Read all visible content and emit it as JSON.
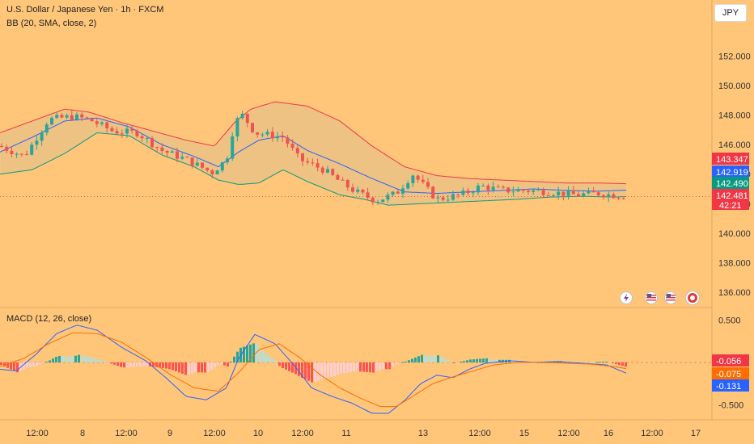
{
  "chart": {
    "title": "U.S. Dollar / Japanese Yen · 1h · FXCM",
    "indicator_label": "BB (20, SMA, close, 2)",
    "macd_label": "MACD (12, 26, close)",
    "currency": "JPY"
  },
  "colors": {
    "background": "#ffc67a",
    "up": "#26a69a",
    "down": "#ef5350",
    "upper_band": "#f23645",
    "basis": "#2962ff",
    "lower_band": "#089981",
    "macd_line": "#2962ff",
    "signal_line": "#ff6d00",
    "hist_up_strong": "#26a69a",
    "hist_up_weak": "#b2dfdb",
    "hist_down_strong": "#ff5252",
    "hist_down_weak": "#ffcdd2"
  },
  "price_axis": {
    "range": [
      135.3,
      153.6
    ],
    "ticks": [
      "152.000",
      "150.000",
      "148.000",
      "146.000",
      "144.000",
      "142.000",
      "140.000",
      "138.000",
      "136.000"
    ]
  },
  "macd_axis": {
    "range": [
      -0.6,
      0.58
    ],
    "ticks": [
      "0.500",
      "0.000",
      "-0.500"
    ]
  },
  "price_labels": [
    {
      "text": "143.347",
      "value": 143.347,
      "color": "#f23645"
    },
    {
      "text": "142.919",
      "value": 142.919,
      "color": "#2962ff"
    },
    {
      "text": "142.490",
      "value": 142.49,
      "color": "#089981"
    },
    {
      "text": "142.481",
      "value": 142.481,
      "color": "#f23645",
      "sub": "42:21"
    }
  ],
  "macd_labels": [
    {
      "text": "-0.056",
      "value": -0.056,
      "color": "#f23645"
    },
    {
      "text": "-0.075",
      "value": -0.075,
      "color": "#ff6d00"
    },
    {
      "text": "-0.131",
      "value": -0.131,
      "color": "#2962ff"
    }
  ],
  "time_axis": [
    "12:00",
    "8",
    "12:00",
    "9",
    "12:00",
    "10",
    "12:00",
    "11",
    "13",
    "12:00",
    "15",
    "12:00",
    "16",
    "12:00",
    "17"
  ],
  "events": [
    "lightning-icon",
    "us-flag-icon",
    "us-flag-icon",
    "record-icon"
  ],
  "chart_data": {
    "type": "candlestick",
    "price_keys": [
      [
        0,
        145.9
      ],
      [
        30,
        145.2
      ],
      [
        60,
        147.7
      ],
      [
        90,
        147.9
      ],
      [
        110,
        147.7
      ],
      [
        140,
        146.9
      ],
      [
        170,
        146.8
      ],
      [
        200,
        145.6
      ],
      [
        230,
        145.0
      ],
      [
        262,
        144.1
      ],
      [
        280,
        145.0
      ],
      [
        290,
        147.5
      ],
      [
        300,
        148.0
      ],
      [
        315,
        146.8
      ],
      [
        350,
        146.5
      ],
      [
        370,
        145.0
      ],
      [
        400,
        144.3
      ],
      [
        420,
        143.5
      ],
      [
        440,
        142.8
      ],
      [
        465,
        142.2
      ],
      [
        490,
        142.7
      ],
      [
        510,
        144.0
      ],
      [
        540,
        142.3
      ],
      [
        570,
        142.6
      ],
      [
        595,
        143.2
      ],
      [
        620,
        142.9
      ],
      [
        650,
        142.9
      ],
      [
        680,
        142.8
      ],
      [
        710,
        142.6
      ],
      [
        740,
        142.7
      ],
      [
        775,
        142.48
      ]
    ],
    "upper_band_keys": [
      [
        0,
        146.8
      ],
      [
        40,
        147.6
      ],
      [
        80,
        148.4
      ],
      [
        110,
        148.2
      ],
      [
        150,
        147.5
      ],
      [
        190,
        146.9
      ],
      [
        230,
        146.3
      ],
      [
        265,
        145.9
      ],
      [
        290,
        147.5
      ],
      [
        310,
        148.4
      ],
      [
        340,
        148.9
      ],
      [
        380,
        148.6
      ],
      [
        420,
        147.6
      ],
      [
        460,
        145.9
      ],
      [
        500,
        144.5
      ],
      [
        540,
        143.9
      ],
      [
        580,
        143.7
      ],
      [
        620,
        143.6
      ],
      [
        660,
        143.5
      ],
      [
        700,
        143.4
      ],
      [
        740,
        143.4
      ],
      [
        775,
        143.35
      ]
    ],
    "basis_keys": [
      [
        0,
        145.5
      ],
      [
        40,
        146.5
      ],
      [
        80,
        147.6
      ],
      [
        120,
        147.8
      ],
      [
        160,
        147.2
      ],
      [
        200,
        146.0
      ],
      [
        240,
        145.2
      ],
      [
        270,
        144.5
      ],
      [
        295,
        145.5
      ],
      [
        320,
        146.3
      ],
      [
        350,
        146.6
      ],
      [
        380,
        145.6
      ],
      [
        420,
        144.7
      ],
      [
        460,
        143.7
      ],
      [
        500,
        142.8
      ],
      [
        540,
        142.7
      ],
      [
        580,
        142.8
      ],
      [
        620,
        142.9
      ],
      [
        660,
        143.0
      ],
      [
        700,
        142.9
      ],
      [
        740,
        142.85
      ],
      [
        775,
        142.92
      ]
    ],
    "lower_band_keys": [
      [
        0,
        144.0
      ],
      [
        40,
        144.3
      ],
      [
        80,
        145.4
      ],
      [
        120,
        146.8
      ],
      [
        160,
        146.6
      ],
      [
        200,
        145.3
      ],
      [
        240,
        144.5
      ],
      [
        270,
        143.6
      ],
      [
        295,
        143.3
      ],
      [
        320,
        143.4
      ],
      [
        350,
        144.3
      ],
      [
        380,
        143.5
      ],
      [
        420,
        142.6
      ],
      [
        450,
        142.3
      ],
      [
        480,
        141.9
      ],
      [
        520,
        142.0
      ],
      [
        560,
        142.1
      ],
      [
        600,
        142.2
      ],
      [
        640,
        142.3
      ],
      [
        680,
        142.45
      ],
      [
        720,
        142.5
      ],
      [
        760,
        142.45
      ],
      [
        775,
        142.49
      ]
    ],
    "macd_keys": [
      [
        0,
        -0.08
      ],
      [
        20,
        -0.1
      ],
      [
        45,
        0.1
      ],
      [
        70,
        0.34
      ],
      [
        95,
        0.44
      ],
      [
        120,
        0.38
      ],
      [
        150,
        0.18
      ],
      [
        180,
        0.02
      ],
      [
        205,
        -0.18
      ],
      [
        230,
        -0.4
      ],
      [
        255,
        -0.44
      ],
      [
        280,
        -0.3
      ],
      [
        295,
        0.05
      ],
      [
        315,
        0.33
      ],
      [
        340,
        0.22
      ],
      [
        365,
        -0.05
      ],
      [
        385,
        -0.3
      ],
      [
        410,
        -0.4
      ],
      [
        435,
        -0.48
      ],
      [
        460,
        -0.6
      ],
      [
        480,
        -0.6
      ],
      [
        500,
        -0.45
      ],
      [
        520,
        -0.25
      ],
      [
        540,
        -0.15
      ],
      [
        560,
        -0.18
      ],
      [
        580,
        -0.08
      ],
      [
        600,
        -0.01
      ],
      [
        630,
        0.02
      ],
      [
        660,
        0.0
      ],
      [
        690,
        0.01
      ],
      [
        720,
        -0.01
      ],
      [
        750,
        -0.03
      ],
      [
        775,
        -0.131
      ]
    ],
    "signal_keys": [
      [
        0,
        -0.05
      ],
      [
        30,
        0.05
      ],
      [
        60,
        0.22
      ],
      [
        90,
        0.35
      ],
      [
        120,
        0.34
      ],
      [
        150,
        0.24
      ],
      [
        180,
        0.06
      ],
      [
        210,
        -0.14
      ],
      [
        240,
        -0.3
      ],
      [
        270,
        -0.34
      ],
      [
        295,
        -0.12
      ],
      [
        320,
        0.15
      ],
      [
        345,
        0.22
      ],
      [
        370,
        0.06
      ],
      [
        395,
        -0.14
      ],
      [
        420,
        -0.3
      ],
      [
        445,
        -0.42
      ],
      [
        470,
        -0.52
      ],
      [
        490,
        -0.52
      ],
      [
        510,
        -0.4
      ],
      [
        535,
        -0.25
      ],
      [
        560,
        -0.17
      ],
      [
        585,
        -0.1
      ],
      [
        610,
        -0.03
      ],
      [
        640,
        0.0
      ],
      [
        670,
        0.0
      ],
      [
        700,
        -0.01
      ],
      [
        730,
        -0.02
      ],
      [
        760,
        -0.05
      ],
      [
        775,
        -0.075
      ]
    ],
    "hist_last": -0.056
  }
}
